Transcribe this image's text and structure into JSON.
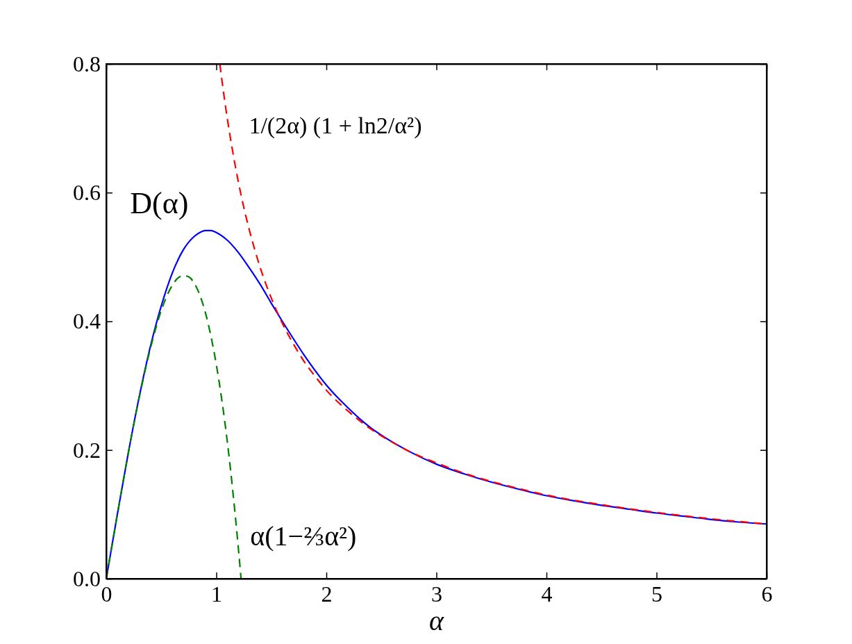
{
  "chart_data": {
    "type": "line",
    "xlabel": "α",
    "xlim": [
      0,
      6
    ],
    "xticks": [
      0,
      1,
      2,
      3,
      4,
      5,
      6
    ],
    "ylim": [
      0,
      0.8
    ],
    "yticks": [
      {
        "value": 0,
        "label": "0.0"
      },
      0.2,
      0.4,
      0.6,
      0.8
    ],
    "series": [
      {
        "name": "D(α)",
        "color": "#0000ff",
        "line_style": "solid",
        "x": [
          0,
          0.1,
          0.2,
          0.3,
          0.4,
          0.5,
          0.6,
          0.7,
          0.8,
          0.85,
          0.9,
          0.95,
          1.0,
          1.1,
          1.2,
          1.3,
          1.4,
          1.5,
          1.6,
          1.7,
          1.8,
          1.9,
          2.0,
          2.1,
          2.2,
          2.3,
          2.4,
          2.5,
          2.75,
          3.0,
          3.25,
          3.5,
          3.75,
          4.0,
          4.25,
          4.5,
          4.75,
          5.0,
          5.25,
          5.5,
          5.75,
          6.0
        ],
        "values": [
          0,
          0.099,
          0.195,
          0.283,
          0.36,
          0.424,
          0.475,
          0.511,
          0.532,
          0.538,
          0.541,
          0.541,
          0.538,
          0.526,
          0.507,
          0.483,
          0.457,
          0.428,
          0.4,
          0.373,
          0.347,
          0.323,
          0.301,
          0.282,
          0.265,
          0.249,
          0.235,
          0.223,
          0.198,
          0.178,
          0.163,
          0.15,
          0.139,
          0.129,
          0.121,
          0.114,
          0.108,
          0.102,
          0.097,
          0.092,
          0.088,
          0.085
        ]
      },
      {
        "name": "1/(2α) (1 + ln2/α²)",
        "color": "#ff0000",
        "line_style": "dashed",
        "x": [
          1.032,
          1.05,
          1.1,
          1.15,
          1.2,
          1.25,
          1.3,
          1.35,
          1.4,
          1.5,
          1.6,
          1.7,
          1.8,
          1.9,
          2.0,
          2.2,
          2.4,
          2.6,
          2.8,
          3.0,
          3.25,
          3.5,
          3.75,
          4.0,
          4.5,
          5.0,
          5.5,
          6.0
        ],
        "values": [
          0.8,
          0.776,
          0.715,
          0.663,
          0.617,
          0.577,
          0.542,
          0.511,
          0.483,
          0.436,
          0.397,
          0.365,
          0.337,
          0.314,
          0.293,
          0.26,
          0.233,
          0.212,
          0.194,
          0.18,
          0.164,
          0.151,
          0.14,
          0.13,
          0.115,
          0.103,
          0.093,
          0.085
        ]
      },
      {
        "name": "α(1−⅔α²)",
        "color": "#008000",
        "line_style": "dashed",
        "x": [
          0,
          0.1,
          0.2,
          0.3,
          0.4,
          0.5,
          0.6,
          0.65,
          0.7,
          0.75,
          0.8,
          0.85,
          0.9,
          0.95,
          1.0,
          1.05,
          1.1,
          1.15,
          1.2,
          1.225
        ],
        "values": [
          0,
          0.099,
          0.195,
          0.282,
          0.357,
          0.417,
          0.456,
          0.467,
          0.471,
          0.469,
          0.459,
          0.441,
          0.414,
          0.378,
          0.333,
          0.278,
          0.213,
          0.136,
          0.048,
          0
        ]
      }
    ]
  }
}
